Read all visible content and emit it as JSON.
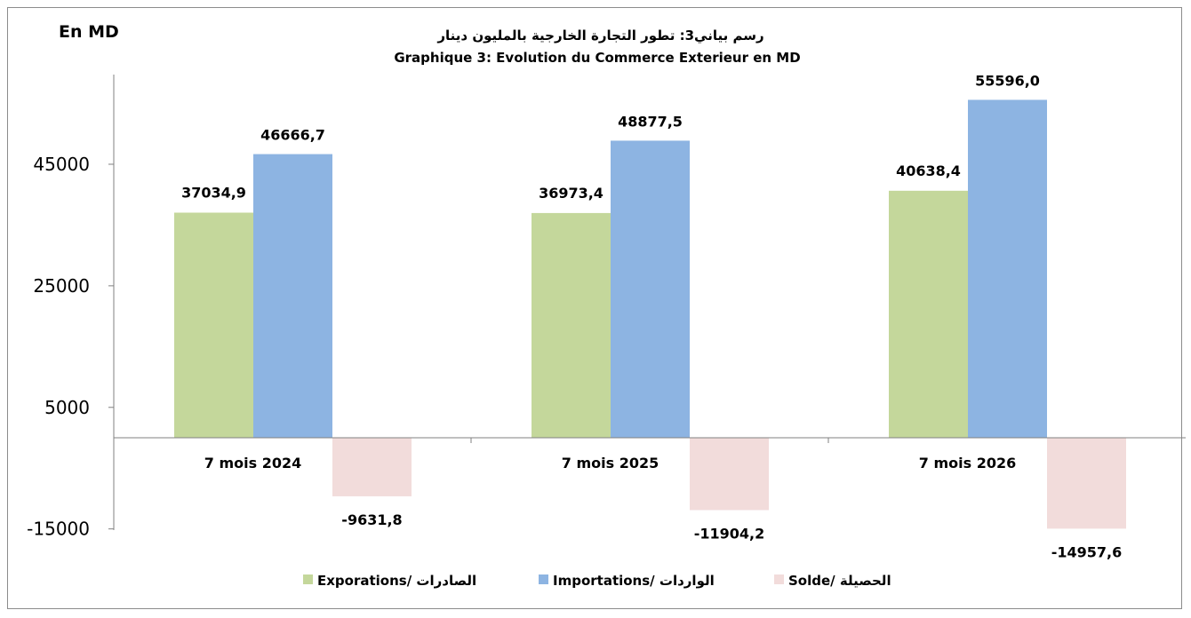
{
  "chart_data": {
    "type": "bar",
    "unit_label": "En MD",
    "title": "رسم بياني3: تطور التجارة الخارجية بالمليون دينار",
    "subtitle": "Graphique 3: Evolution du Commerce Exterieur en MD",
    "categories": [
      "7 mois 2024",
      "7 mois 2025",
      "7 mois 2026"
    ],
    "series": [
      {
        "name": "Exporations/  الصادرات",
        "color": "#c4d79b",
        "values": [
          37034.9,
          36973.4,
          40638.4
        ],
        "labels": [
          "37034,9",
          "36973,4",
          "40638,4"
        ]
      },
      {
        "name": "Importations/ الواردات",
        "color": "#8db4e2",
        "values": [
          46666.7,
          48877.5,
          55596.0
        ],
        "labels": [
          "46666,7",
          "48877,5",
          "55596,0"
        ]
      },
      {
        "name": "Solde/ الحصيلة",
        "color": "#f2dcdb",
        "values": [
          -9631.8,
          -11904.2,
          -14957.6
        ],
        "labels": [
          "-9631,8",
          "-11904,2",
          "-14957,6"
        ]
      }
    ],
    "yticks": [
      -15000,
      5000,
      25000,
      45000
    ],
    "ylim": [
      -15000,
      60000
    ],
    "grid": false,
    "legend_position": "bottom"
  }
}
